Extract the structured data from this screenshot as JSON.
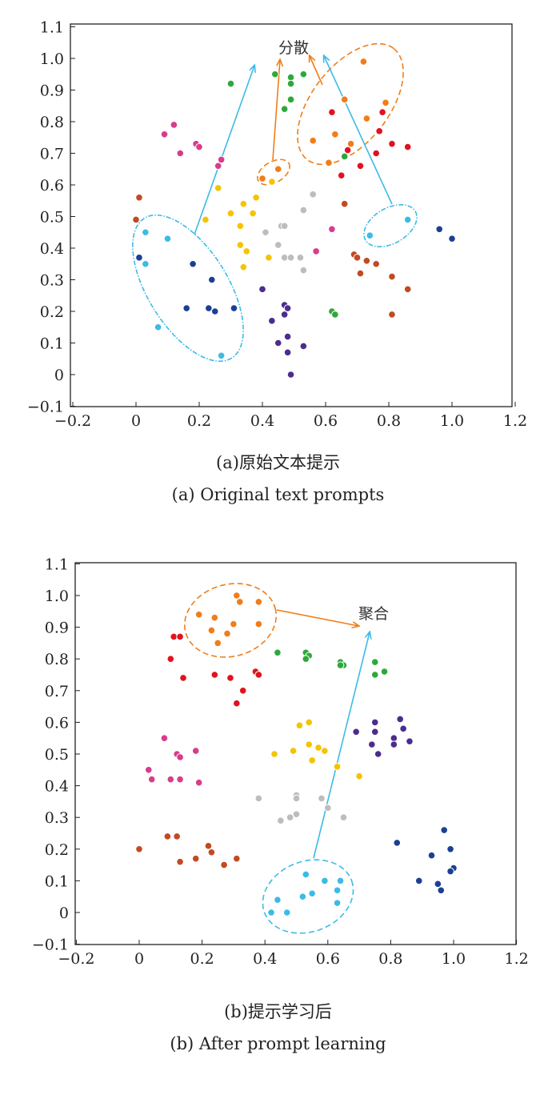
{
  "colors": {
    "cyan": "#3cbbe6",
    "navy": "#1c3f94",
    "orange": "#f07d1a",
    "green": "#2ea83a",
    "red": "#e1121f",
    "pink": "#d83c8c",
    "brown": "#c24a22",
    "yellow": "#f5c300",
    "gray": "#bdbdbd",
    "purple": "#4c2c8e"
  },
  "chart_data": [
    {
      "type": "scatter",
      "title": "(a)原始文本提示",
      "subtitle": "(a) Original text prompts",
      "xlim": [
        -0.2,
        1.2
      ],
      "ylim": [
        -0.1,
        1.1
      ],
      "xticks": [
        "−0.2",
        "0",
        "0.2",
        "0.4",
        "0.6",
        "0.8",
        "1.0",
        "1.2"
      ],
      "yticks": [
        "−0.1",
        "0",
        "0.1",
        "0.2",
        "0.3",
        "0.4",
        "0.5",
        "0.6",
        "0.7",
        "0.8",
        "0.9",
        "1.0",
        "1.1"
      ],
      "annotation": "分散",
      "series": [
        {
          "name": "cyan",
          "points": [
            [
              0.03,
              0.45
            ],
            [
              0.03,
              0.35
            ],
            [
              0.1,
              0.43
            ],
            [
              0.07,
              0.15
            ],
            [
              0.27,
              0.06
            ],
            [
              0.74,
              0.44
            ],
            [
              0.86,
              0.49
            ]
          ]
        },
        {
          "name": "navy",
          "points": [
            [
              0.01,
              0.37
            ],
            [
              0.18,
              0.35
            ],
            [
              0.16,
              0.21
            ],
            [
              0.24,
              0.3
            ],
            [
              0.23,
              0.21
            ],
            [
              0.25,
              0.2
            ],
            [
              0.31,
              0.21
            ],
            [
              0.96,
              0.46
            ],
            [
              1.0,
              0.43
            ]
          ]
        },
        {
          "name": "orange",
          "points": [
            [
              0.4,
              0.62
            ],
            [
              0.45,
              0.65
            ],
            [
              0.72,
              0.99
            ],
            [
              0.66,
              0.87
            ],
            [
              0.79,
              0.86
            ],
            [
              0.73,
              0.81
            ],
            [
              0.56,
              0.74
            ],
            [
              0.63,
              0.76
            ],
            [
              0.68,
              0.73
            ],
            [
              0.61,
              0.67
            ]
          ]
        },
        {
          "name": "green",
          "points": [
            [
              0.3,
              0.92
            ],
            [
              0.44,
              0.95
            ],
            [
              0.49,
              0.94
            ],
            [
              0.53,
              0.95
            ],
            [
              0.49,
              0.92
            ],
            [
              0.49,
              0.87
            ],
            [
              0.47,
              0.84
            ],
            [
              0.66,
              0.69
            ],
            [
              0.62,
              0.2
            ],
            [
              0.63,
              0.19
            ]
          ]
        },
        {
          "name": "red",
          "points": [
            [
              0.62,
              0.83
            ],
            [
              0.77,
              0.77
            ],
            [
              0.78,
              0.83
            ],
            [
              0.67,
              0.71
            ],
            [
              0.76,
              0.7
            ],
            [
              0.81,
              0.73
            ],
            [
              0.86,
              0.72
            ],
            [
              0.65,
              0.63
            ],
            [
              0.71,
              0.66
            ]
          ]
        },
        {
          "name": "pink",
          "points": [
            [
              0.12,
              0.79
            ],
            [
              0.09,
              0.76
            ],
            [
              0.19,
              0.73
            ],
            [
              0.2,
              0.72
            ],
            [
              0.14,
              0.7
            ],
            [
              0.27,
              0.68
            ],
            [
              0.26,
              0.66
            ],
            [
              0.62,
              0.46
            ],
            [
              0.57,
              0.39
            ]
          ]
        },
        {
          "name": "brown",
          "points": [
            [
              0.01,
              0.56
            ],
            [
              0.0,
              0.49
            ],
            [
              0.66,
              0.54
            ],
            [
              0.69,
              0.38
            ],
            [
              0.7,
              0.37
            ],
            [
              0.73,
              0.36
            ],
            [
              0.76,
              0.35
            ],
            [
              0.71,
              0.32
            ],
            [
              0.81,
              0.31
            ],
            [
              0.86,
              0.27
            ],
            [
              0.81,
              0.19
            ]
          ]
        },
        {
          "name": "yellow",
          "points": [
            [
              0.26,
              0.59
            ],
            [
              0.22,
              0.49
            ],
            [
              0.3,
              0.51
            ],
            [
              0.33,
              0.47
            ],
            [
              0.37,
              0.51
            ],
            [
              0.34,
              0.54
            ],
            [
              0.38,
              0.56
            ],
            [
              0.43,
              0.61
            ],
            [
              0.33,
              0.41
            ],
            [
              0.35,
              0.39
            ],
            [
              0.34,
              0.34
            ],
            [
              0.42,
              0.37
            ]
          ]
        },
        {
          "name": "gray",
          "points": [
            [
              0.56,
              0.57
            ],
            [
              0.53,
              0.52
            ],
            [
              0.46,
              0.47
            ],
            [
              0.47,
              0.47
            ],
            [
              0.41,
              0.45
            ],
            [
              0.45,
              0.41
            ],
            [
              0.47,
              0.37
            ],
            [
              0.49,
              0.37
            ],
            [
              0.52,
              0.37
            ],
            [
              0.53,
              0.33
            ]
          ]
        },
        {
          "name": "purple",
          "points": [
            [
              0.4,
              0.27
            ],
            [
              0.47,
              0.22
            ],
            [
              0.48,
              0.21
            ],
            [
              0.47,
              0.19
            ],
            [
              0.43,
              0.17
            ],
            [
              0.48,
              0.12
            ],
            [
              0.45,
              0.1
            ],
            [
              0.53,
              0.09
            ],
            [
              0.48,
              0.07
            ],
            [
              0.49,
              0.0
            ]
          ]
        }
      ]
    },
    {
      "type": "scatter",
      "title": "(b)提示学习后",
      "subtitle": "(b) After prompt learning",
      "xlim": [
        -0.2,
        1.2
      ],
      "ylim": [
        -0.1,
        1.1
      ],
      "xticks": [
        "−0.2",
        "0",
        "0.2",
        "0.4",
        "0.6",
        "0.8",
        "1.0",
        "1.2"
      ],
      "yticks": [
        "−0.1",
        "0",
        "0.1",
        "0.2",
        "0.3",
        "0.4",
        "0.5",
        "0.6",
        "0.7",
        "0.8",
        "0.9",
        "1.0",
        "1.1"
      ],
      "annotation": "聚合",
      "series": [
        {
          "name": "orange",
          "points": [
            [
              0.31,
              1.0
            ],
            [
              0.38,
              0.98
            ],
            [
              0.19,
              0.94
            ],
            [
              0.24,
              0.93
            ],
            [
              0.3,
              0.91
            ],
            [
              0.38,
              0.91
            ],
            [
              0.23,
              0.89
            ],
            [
              0.28,
              0.88
            ],
            [
              0.25,
              0.85
            ],
            [
              0.32,
              0.98
            ]
          ]
        },
        {
          "name": "red",
          "points": [
            [
              0.11,
              0.87
            ],
            [
              0.13,
              0.87
            ],
            [
              0.1,
              0.8
            ],
            [
              0.14,
              0.74
            ],
            [
              0.24,
              0.75
            ],
            [
              0.29,
              0.74
            ],
            [
              0.37,
              0.76
            ],
            [
              0.38,
              0.75
            ],
            [
              0.33,
              0.7
            ],
            [
              0.31,
              0.66
            ]
          ]
        },
        {
          "name": "green",
          "points": [
            [
              0.44,
              0.82
            ],
            [
              0.53,
              0.82
            ],
            [
              0.54,
              0.81
            ],
            [
              0.53,
              0.8
            ],
            [
              0.64,
              0.79
            ],
            [
              0.65,
              0.78
            ],
            [
              0.64,
              0.78
            ],
            [
              0.75,
              0.79
            ],
            [
              0.78,
              0.76
            ],
            [
              0.75,
              0.75
            ]
          ]
        },
        {
          "name": "purple",
          "points": [
            [
              0.83,
              0.61
            ],
            [
              0.84,
              0.58
            ],
            [
              0.69,
              0.57
            ],
            [
              0.75,
              0.6
            ],
            [
              0.75,
              0.57
            ],
            [
              0.81,
              0.55
            ],
            [
              0.74,
              0.53
            ],
            [
              0.81,
              0.53
            ],
            [
              0.86,
              0.54
            ],
            [
              0.76,
              0.5
            ]
          ]
        },
        {
          "name": "yellow",
          "points": [
            [
              0.54,
              0.6
            ],
            [
              0.51,
              0.59
            ],
            [
              0.54,
              0.53
            ],
            [
              0.49,
              0.51
            ],
            [
              0.57,
              0.52
            ],
            [
              0.59,
              0.51
            ],
            [
              0.43,
              0.5
            ],
            [
              0.55,
              0.48
            ],
            [
              0.63,
              0.46
            ],
            [
              0.7,
              0.43
            ]
          ]
        },
        {
          "name": "pink",
          "points": [
            [
              0.08,
              0.55
            ],
            [
              0.18,
              0.51
            ],
            [
              0.12,
              0.5
            ],
            [
              0.13,
              0.49
            ],
            [
              0.03,
              0.45
            ],
            [
              0.04,
              0.42
            ],
            [
              0.1,
              0.42
            ],
            [
              0.13,
              0.42
            ],
            [
              0.19,
              0.41
            ]
          ]
        },
        {
          "name": "gray",
          "points": [
            [
              0.38,
              0.36
            ],
            [
              0.5,
              0.37
            ],
            [
              0.5,
              0.36
            ],
            [
              0.58,
              0.36
            ],
            [
              0.6,
              0.33
            ],
            [
              0.5,
              0.31
            ],
            [
              0.48,
              0.3
            ],
            [
              0.45,
              0.29
            ],
            [
              0.65,
              0.3
            ]
          ]
        },
        {
          "name": "navy",
          "points": [
            [
              0.82,
              0.22
            ],
            [
              0.97,
              0.26
            ],
            [
              0.99,
              0.2
            ],
            [
              0.93,
              0.18
            ],
            [
              1.0,
              0.14
            ],
            [
              0.99,
              0.13
            ],
            [
              0.89,
              0.1
            ],
            [
              0.95,
              0.09
            ],
            [
              0.96,
              0.07
            ]
          ]
        },
        {
          "name": "cyan",
          "points": [
            [
              0.53,
              0.12
            ],
            [
              0.59,
              0.1
            ],
            [
              0.64,
              0.1
            ],
            [
              0.55,
              0.06
            ],
            [
              0.63,
              0.07
            ],
            [
              0.52,
              0.05
            ],
            [
              0.63,
              0.03
            ],
            [
              0.44,
              0.04
            ],
            [
              0.42,
              0.0
            ],
            [
              0.47,
              0.0
            ]
          ]
        },
        {
          "name": "brown",
          "points": [
            [
              0.0,
              0.2
            ],
            [
              0.09,
              0.24
            ],
            [
              0.12,
              0.24
            ],
            [
              0.22,
              0.21
            ],
            [
              0.23,
              0.19
            ],
            [
              0.18,
              0.17
            ],
            [
              0.13,
              0.16
            ],
            [
              0.31,
              0.17
            ],
            [
              0.27,
              0.15
            ]
          ]
        }
      ]
    }
  ]
}
